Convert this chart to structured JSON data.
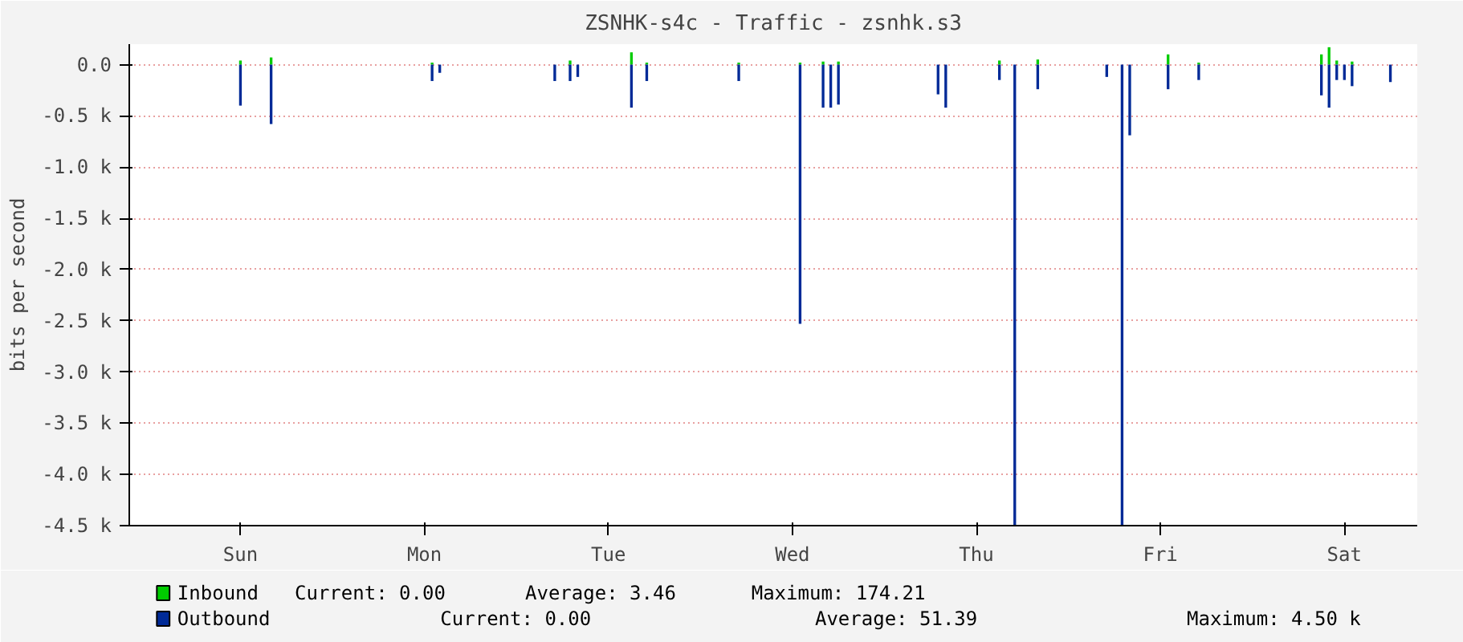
{
  "chart_data": {
    "type": "bar",
    "title": "ZSNHK-s4c - Traffic - zsnhk.s3",
    "ylabel": "bits per second",
    "categories": [
      null,
      null,
      null,
      null,
      null,
      null,
      null,
      null,
      null,
      null,
      null,
      null,
      null,
      null,
      "Sun",
      null,
      null,
      null,
      null,
      null,
      null,
      null,
      null,
      null,
      null,
      null,
      null,
      null,
      null,
      null,
      null,
      null,
      null,
      null,
      null,
      null,
      null,
      null,
      "Mon",
      null,
      null,
      null,
      null,
      null,
      null,
      null,
      null,
      null,
      null,
      null,
      null,
      null,
      null,
      null,
      null,
      null,
      null,
      null,
      null,
      null,
      null,
      null,
      "Tue",
      null,
      null,
      null,
      null,
      null,
      null,
      null,
      null,
      null,
      null,
      null,
      null,
      null,
      null,
      null,
      null,
      null,
      null,
      null,
      null,
      null,
      null,
      null,
      "Wed",
      null,
      null,
      null,
      null,
      null,
      null,
      null,
      null,
      null,
      null,
      null,
      null,
      null,
      null,
      null,
      null,
      null,
      null,
      null,
      null,
      null,
      null,
      null,
      "Thu",
      null,
      null,
      null,
      null,
      null,
      null,
      null,
      null,
      null,
      null,
      null,
      null,
      null,
      null,
      null,
      null,
      null,
      null,
      null,
      null,
      null,
      null,
      null,
      "Fri",
      null,
      null,
      null,
      null,
      null,
      null,
      null,
      null,
      null,
      null,
      null,
      null,
      null,
      null,
      null,
      null,
      null,
      null,
      null,
      null,
      null,
      null,
      null,
      "Sat",
      null,
      null,
      null,
      null,
      null,
      null,
      null,
      null,
      null
    ],
    "ylim": [
      -4500,
      200
    ],
    "yticks": [
      {
        "value": 0,
        "label": "0.0"
      },
      {
        "value": -500,
        "label": "-0.5 k"
      },
      {
        "value": -1000,
        "label": "-1.0 k"
      },
      {
        "value": -1500,
        "label": "-1.5 k"
      },
      {
        "value": -2000,
        "label": "-2.0 k"
      },
      {
        "value": -2500,
        "label": "-2.5 k"
      },
      {
        "value": -3000,
        "label": "-3.0 k"
      },
      {
        "value": -3500,
        "label": "-3.5 k"
      },
      {
        "value": -4000,
        "label": "-4.0 k"
      },
      {
        "value": -4500,
        "label": "-4.5 k"
      }
    ],
    "grid": "y",
    "legend": "bottom",
    "series": [
      {
        "name": "Inbound",
        "color": "#00cc00",
        "values": [
          null,
          null,
          null,
          null,
          null,
          null,
          null,
          null,
          null,
          null,
          null,
          null,
          null,
          null,
          40,
          null,
          null,
          null,
          70,
          null,
          null,
          null,
          null,
          null,
          null,
          null,
          null,
          null,
          null,
          null,
          null,
          null,
          null,
          null,
          null,
          null,
          null,
          null,
          null,
          20,
          null,
          null,
          null,
          null,
          null,
          null,
          null,
          null,
          null,
          null,
          null,
          null,
          null,
          null,
          null,
          null,
          null,
          40,
          null,
          null,
          null,
          null,
          null,
          null,
          null,
          120,
          null,
          20,
          null,
          null,
          null,
          null,
          null,
          null,
          null,
          null,
          null,
          null,
          null,
          20,
          null,
          null,
          null,
          null,
          null,
          null,
          null,
          20,
          null,
          null,
          30,
          null,
          30,
          null,
          null,
          null,
          null,
          null,
          null,
          null,
          null,
          null,
          null,
          null,
          null,
          null,
          null,
          null,
          null,
          null,
          null,
          null,
          null,
          40,
          null,
          null,
          null,
          null,
          50,
          null,
          null,
          null,
          null,
          null,
          null,
          null,
          null,
          null,
          null,
          null,
          null,
          null,
          null,
          null,
          null,
          100,
          null,
          null,
          null,
          20,
          null,
          null,
          null,
          null,
          null,
          null,
          null,
          null,
          null,
          null,
          null,
          null,
          null,
          null,
          null,
          100,
          170,
          40,
          null,
          30,
          null,
          null,
          null,
          null,
          null,
          null,
          null,
          null
        ]
      },
      {
        "name": "Outbound",
        "color": "#002a97",
        "values": [
          null,
          null,
          null,
          null,
          null,
          null,
          null,
          null,
          null,
          null,
          null,
          null,
          null,
          null,
          -400,
          null,
          null,
          null,
          -580,
          null,
          null,
          null,
          null,
          null,
          null,
          null,
          null,
          null,
          null,
          null,
          null,
          null,
          null,
          null,
          null,
          null,
          null,
          null,
          null,
          -160,
          -80,
          null,
          null,
          null,
          null,
          null,
          null,
          null,
          null,
          null,
          null,
          null,
          null,
          null,
          null,
          -160,
          null,
          -160,
          -120,
          null,
          null,
          null,
          null,
          null,
          null,
          -420,
          null,
          -160,
          null,
          null,
          null,
          null,
          null,
          null,
          null,
          null,
          null,
          null,
          null,
          -160,
          null,
          null,
          null,
          null,
          null,
          null,
          null,
          -2530,
          null,
          null,
          -420,
          -420,
          -390,
          null,
          null,
          null,
          null,
          null,
          null,
          null,
          null,
          null,
          null,
          null,
          null,
          -290,
          -420,
          null,
          null,
          null,
          null,
          null,
          null,
          -150,
          null,
          -4500,
          null,
          null,
          -240,
          null,
          null,
          null,
          null,
          null,
          null,
          null,
          null,
          -120,
          null,
          -4500,
          -690,
          null,
          null,
          null,
          null,
          -240,
          null,
          null,
          null,
          -150,
          null,
          null,
          null,
          null,
          null,
          null,
          null,
          null,
          null,
          null,
          null,
          null,
          null,
          null,
          null,
          -300,
          -420,
          -150,
          -150,
          -210,
          null,
          null,
          null,
          null,
          -170,
          null,
          null,
          null
        ]
      }
    ],
    "annotations": [
      "Current: 0.00",
      "Average: 3.46",
      "Maximum: 174.21",
      "Current: 0.00",
      "Average: 51.39",
      "Maximum: 4.50 k"
    ]
  }
}
